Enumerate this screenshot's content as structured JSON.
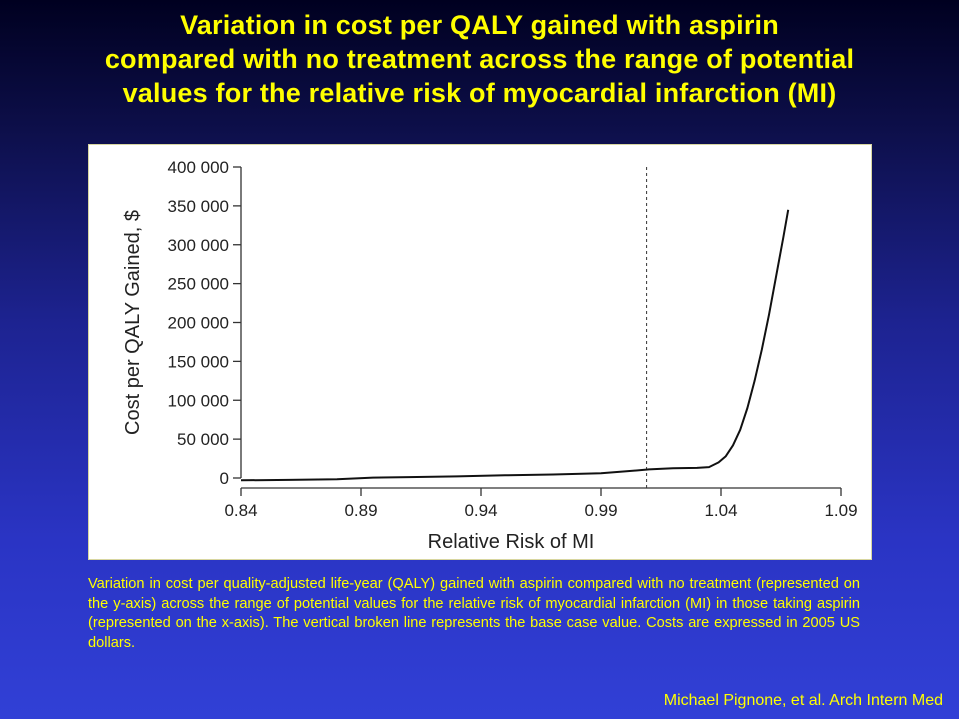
{
  "slide": {
    "title_lines": [
      "Variation in cost per QALY gained with aspirin",
      "compared with no treatment across the range of potential",
      "values for the relative risk of myocardial infarction (MI)"
    ],
    "caption": "Variation in cost per quality-adjusted life-year (QALY) gained with aspirin compared with no treatment (represented on the y-axis) across the range of potential values for the relative risk of myocardial infarction (MI) in those taking aspirin (represented on the x-axis). The vertical broken line represents the base case value. Costs are expressed in 2005 US dollars.",
    "credit": "Michael Pignone, et al. Arch Intern Med",
    "colors": {
      "title": "#ffff00",
      "background_top": "#000020",
      "background_bottom": "#3140d6",
      "line": "#111111"
    }
  },
  "chart_data": {
    "type": "line",
    "xlabel": "Relative Risk of MI",
    "ylabel": "Cost per QALY Gained, $",
    "xlim": [
      0.84,
      1.09
    ],
    "ylim": [
      0,
      400000
    ],
    "x_ticks": [
      0.84,
      0.89,
      0.94,
      0.99,
      1.04,
      1.09
    ],
    "x_tick_labels": [
      "0.84",
      "0.89",
      "0.94",
      "0.99",
      "1.04",
      "1.09"
    ],
    "y_ticks": [
      0,
      50000,
      100000,
      150000,
      200000,
      250000,
      300000,
      350000,
      400000
    ],
    "y_tick_labels": [
      "0",
      "50 000",
      "100 000",
      "150 000",
      "200 000",
      "250 000",
      "300 000",
      "350 000",
      "400 000"
    ],
    "grid": false,
    "base_case_x": 1.009,
    "series": [
      {
        "x": [
          0.84,
          0.86,
          0.88,
          0.895,
          0.91,
          0.93,
          0.95,
          0.97,
          0.99,
          1.0,
          1.01,
          1.02,
          1.03,
          1.035,
          1.039,
          1.042,
          1.045,
          1.048,
          1.051,
          1.054,
          1.057,
          1.06,
          1.063,
          1.066,
          1.068
        ],
        "values": [
          -3000,
          -2500,
          -1500,
          500,
          1200,
          2000,
          3500,
          4500,
          6000,
          8500,
          11000,
          12500,
          13000,
          14000,
          20000,
          28000,
          42000,
          62000,
          90000,
          125000,
          165000,
          210000,
          260000,
          310000,
          345000
        ]
      }
    ]
  }
}
